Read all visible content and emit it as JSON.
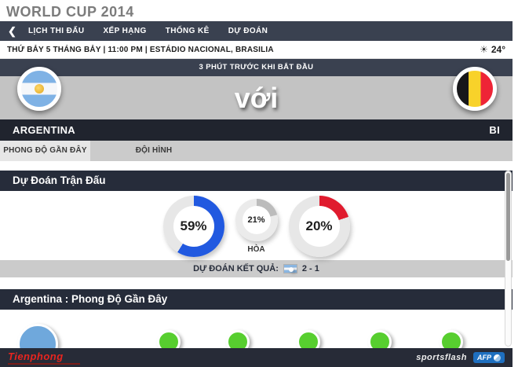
{
  "page": {
    "title": "WORLD CUP 2014"
  },
  "navbar": {
    "back_icon": "❮",
    "items": [
      {
        "label": "LỊCH THI ĐẤU"
      },
      {
        "label": "XẾP HẠNG"
      },
      {
        "label": "THỐNG KÊ"
      },
      {
        "label": "DỰ ĐOÁN"
      }
    ],
    "menu_icon": "hamburger-menu"
  },
  "match_info": {
    "schedule": "THỨ BẢY 5 THÁNG BẢY | 11:00 PM | ESTÁDIO NACIONAL, BRASILIA",
    "weather_icon": "sun-icon",
    "weather_glyph": "☀",
    "temperature": "24°"
  },
  "hero": {
    "countdown": "3 PHÚT TRƯỚC KHI BẮT ĐẦU",
    "versus_label": "với",
    "home_flag": "argentina-flag",
    "away_flag": "belgium-flag"
  },
  "team_bar": {
    "home": "ARGENTINA",
    "away": "BI"
  },
  "tabs": [
    {
      "label": "PHONG ĐỘ GẦN ĐÂY",
      "active": true
    },
    {
      "label": "ĐỘI HÌNH",
      "active": false
    }
  ],
  "prediction_section": {
    "title": "Dự Đoán Trận Đấu",
    "draw_label": "HÒA",
    "result_label": "DỰ ĐOÁN KẾT QUẢ:",
    "predicted_score": "2 - 1"
  },
  "chart_data": {
    "type": "pie",
    "title": "Dự Đoán Trận Đấu",
    "subtitle": "Win probability donut gauges",
    "donuts": [
      {
        "team": "Argentina",
        "value": 59,
        "display": "59%",
        "color": "#2159e0",
        "track": "#e7e7e7",
        "size": "large"
      },
      {
        "team": "Hòa (draw)",
        "value": 21,
        "display": "21%",
        "color": "#bcbcbc",
        "track": "#ebebeb",
        "size": "small"
      },
      {
        "team": "Bỉ (Belgium)",
        "value": 20,
        "display": "20%",
        "color": "#e01b2e",
        "track": "#e7e7e7",
        "size": "large"
      }
    ],
    "predicted_score": "2 - 1"
  },
  "form_section": {
    "title": "Argentina : Phong Độ Gần Đây",
    "results": [
      {
        "color": "#6fa8dc",
        "size": "large"
      },
      {
        "color": "#57ce2f",
        "size": "small"
      },
      {
        "color": "#57ce2f",
        "size": "small"
      },
      {
        "color": "#57ce2f",
        "size": "small"
      },
      {
        "color": "#57ce2f",
        "size": "small"
      },
      {
        "color": "#57ce2f",
        "size": "small"
      }
    ]
  },
  "footer": {
    "publisher": "Tienphong",
    "brand": "sportsflash",
    "agency": "AFP"
  },
  "colors": {
    "navbar": "#3a4150",
    "dark_bar": "#20242e",
    "section_header": "#262c3a",
    "hero_band": "#c3c3c3",
    "result_band": "#cbcbcb",
    "tab_active": "#e6e6e6",
    "win_blue": "#2159e0",
    "lose_red": "#e01b2e",
    "form_green": "#57ce2f",
    "form_blue": "#6fa8dc"
  }
}
